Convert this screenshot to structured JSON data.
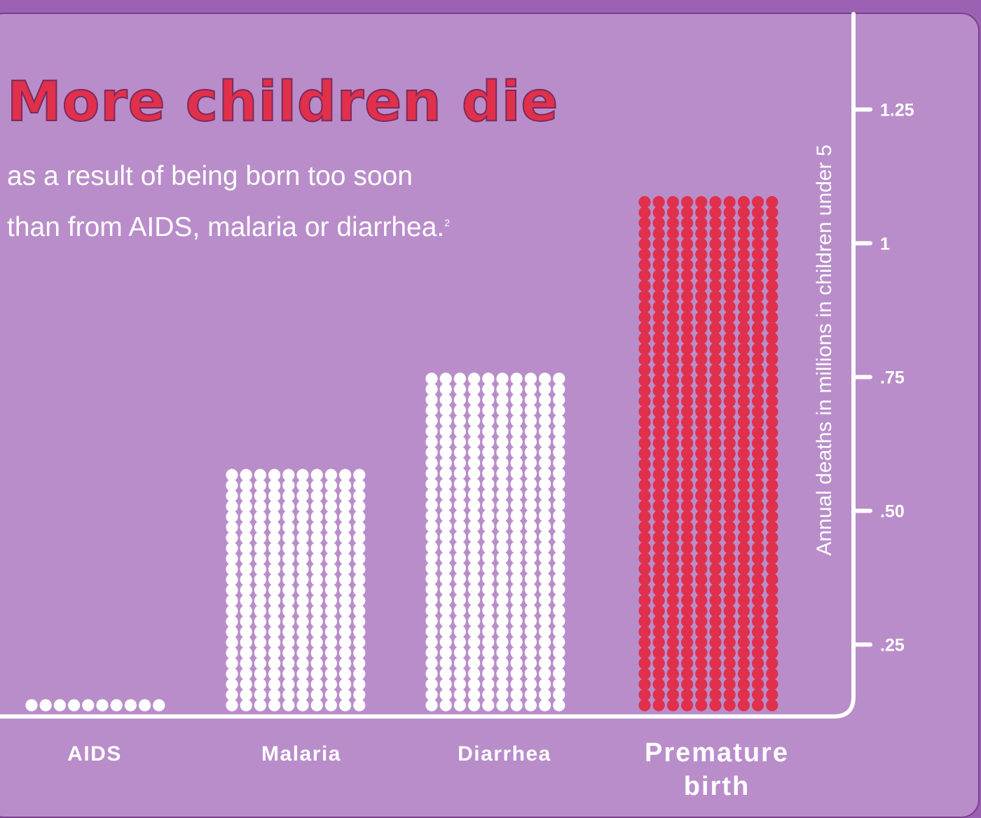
{
  "title": "More children die",
  "subtitle_line1": "as a result of being born too soon",
  "subtitle_line2": "than from AIDS, malaria or diarrhea.",
  "footnote_mark": "2",
  "colors": {
    "background": "#9b62b4",
    "panel": "#b98dca",
    "title": "#e0304c",
    "dots_default": "#ffffff",
    "dots_highlight": "#e0304c"
  },
  "chart_data": {
    "type": "bar",
    "style": "dot-matrix columns, 10 dots per row",
    "categories": [
      "AIDS",
      "Malaria",
      "Diarrhea",
      "Premature birth"
    ],
    "values": [
      0.14,
      0.58,
      0.76,
      1.09
    ],
    "highlight": "Premature birth",
    "ylabel": "Annual deaths in millions in children under 5",
    "yticks": [
      ".25",
      ".50",
      ".75",
      "1",
      "1.25"
    ],
    "ytick_values": [
      0.25,
      0.5,
      0.75,
      1.0,
      1.25
    ],
    "ylim": [
      0.13,
      1.38
    ],
    "axis_position": "right",
    "grid": false,
    "legend": "none"
  }
}
